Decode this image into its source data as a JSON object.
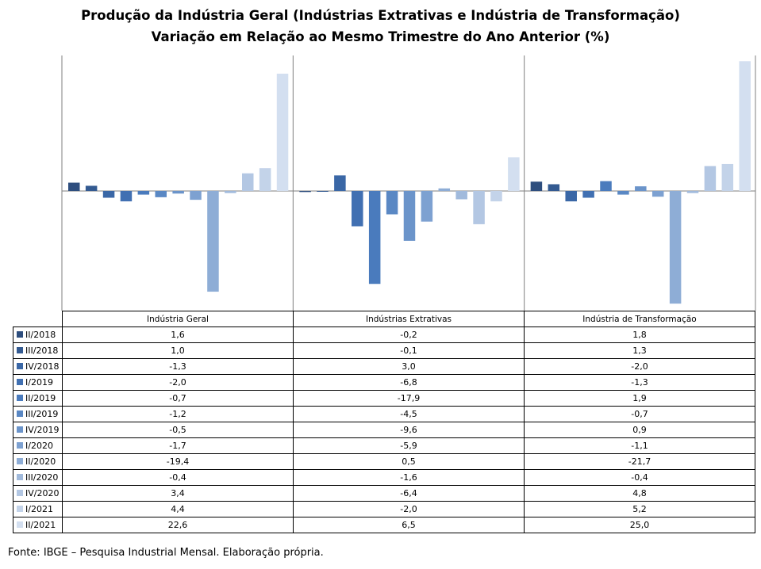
{
  "chart_data": {
    "type": "bar",
    "title": "Produção da Indústria Geral (Indústrias Extrativas e Indústria de Transformação)",
    "subtitle": "Variação em Relação ao Mesmo Trimestre do Ano Anterior (%)",
    "categories": [
      "Indústria Geral",
      "Indústrias Extrativas",
      "Indústria de Transformação"
    ],
    "series": [
      {
        "name": "II/2018",
        "values": [
          1.6,
          -0.2,
          1.8
        ],
        "labels": [
          "1,6",
          "-0,2",
          "1,8"
        ],
        "color": "#2e4e7e"
      },
      {
        "name": "III/2018",
        "values": [
          1.0,
          -0.1,
          1.3
        ],
        "labels": [
          "1,0",
          "-0,1",
          "1,3"
        ],
        "color": "#335a91"
      },
      {
        "name": "IV/2018",
        "values": [
          -1.3,
          3.0,
          -2.0
        ],
        "labels": [
          "-1,3",
          "3,0",
          "-2,0"
        ],
        "color": "#3a67a6"
      },
      {
        "name": "I/2019",
        "values": [
          -2.0,
          -6.8,
          -1.3
        ],
        "labels": [
          "-2,0",
          "-6,8",
          "-1,3"
        ],
        "color": "#4170b2"
      },
      {
        "name": "II/2019",
        "values": [
          -0.7,
          -17.9,
          1.9
        ],
        "labels": [
          "-0,7",
          "-17,9",
          "1,9"
        ],
        "color": "#4a7bbd"
      },
      {
        "name": "III/2019",
        "values": [
          -1.2,
          -4.5,
          -0.7
        ],
        "labels": [
          "-1,2",
          "-4,5",
          "-0,7"
        ],
        "color": "#5a88c4"
      },
      {
        "name": "IV/2019",
        "values": [
          -0.5,
          -9.6,
          0.9
        ],
        "labels": [
          "-0,5",
          "-9,6",
          "0,9"
        ],
        "color": "#6b94ca"
      },
      {
        "name": "I/2020",
        "values": [
          -1.7,
          -5.9,
          -1.1
        ],
        "labels": [
          "-1,7",
          "-5,9",
          "-1,1"
        ],
        "color": "#7da1d1"
      },
      {
        "name": "II/2020",
        "values": [
          -19.4,
          0.5,
          -21.7
        ],
        "labels": [
          "-19,4",
          "0,5",
          "-21,7"
        ],
        "color": "#8eadd6"
      },
      {
        "name": "III/2020",
        "values": [
          -0.4,
          -1.6,
          -0.4
        ],
        "labels": [
          "-0,4",
          "-1,6",
          "-0,4"
        ],
        "color": "#a1badc"
      },
      {
        "name": "IV/2020",
        "values": [
          3.4,
          -6.4,
          4.8
        ],
        "labels": [
          "3,4",
          "-6,4",
          "4,8"
        ],
        "color": "#b3c7e3"
      },
      {
        "name": "I/2021",
        "values": [
          4.4,
          -2.0,
          5.2
        ],
        "labels": [
          "4,4",
          "-2,0",
          "5,2"
        ],
        "color": "#c3d3e9"
      },
      {
        "name": "II/2021",
        "values": [
          22.6,
          6.5,
          25.0
        ],
        "labels": [
          "22,6",
          "6,5",
          "25,0"
        ],
        "color": "#d3dff0"
      }
    ],
    "ylim": [
      -22.0,
      25.2
    ],
    "grid": false,
    "legend": "table"
  },
  "source": "Fonte: IBGE – Pesquisa Industrial Mensal. Elaboração própria."
}
